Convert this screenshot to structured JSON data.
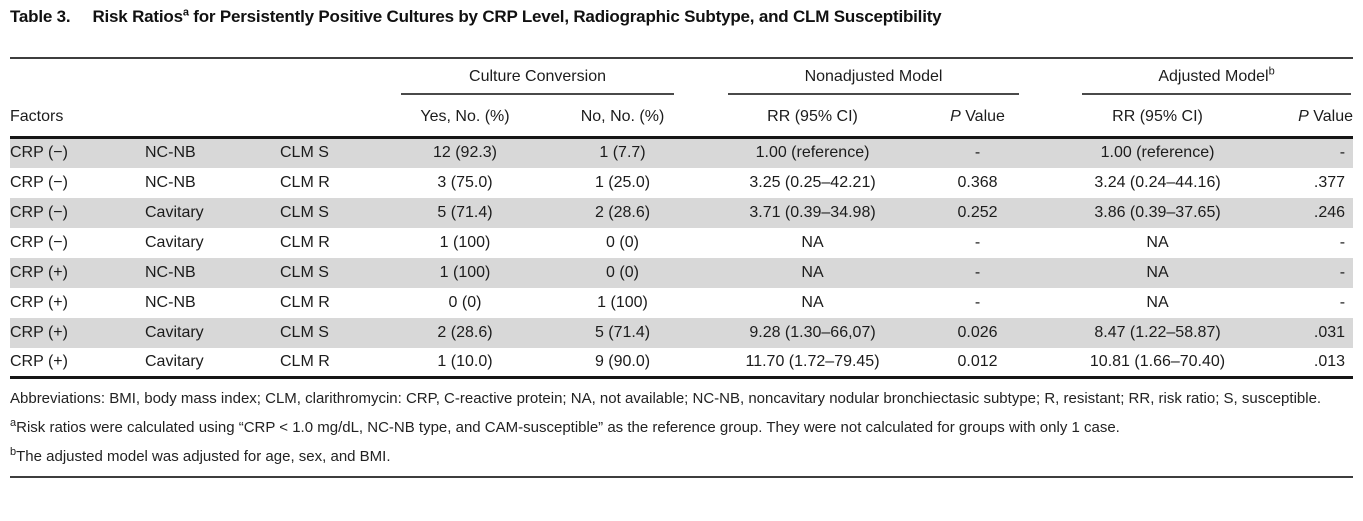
{
  "title": {
    "label": "Table 3.",
    "before_sup": "Risk Ratios",
    "sup": "a",
    "after_sup": " for Persistently Positive Cultures by CRP Level, Radiographic Subtype, and CLM Susceptibility"
  },
  "table": {
    "groups": {
      "culture_conversion": "Culture Conversion",
      "nonadjusted": "Nonadjusted Model",
      "adjusted": "Adjusted Model",
      "adjusted_sup": "b"
    },
    "headers": {
      "factors": "Factors",
      "yes": "Yes, No. (%)",
      "no": "No, No. (%)",
      "rr_nonadjusted": "RR (95% CI)",
      "rr_adjusted": "RR (95% CI)",
      "p_italic": "P",
      "p_rest": " Value"
    },
    "rows": [
      [
        "CRP (−)",
        "NC-NB",
        "CLM S",
        "12 (92.3)",
        "1 (7.7)",
        "1.00 (reference)",
        "-",
        "1.00 (reference)",
        "-"
      ],
      [
        "CRP (−)",
        "NC-NB",
        "CLM R",
        "3 (75.0)",
        "1 (25.0)",
        "3.25 (0.25–42.21)",
        "0.368",
        "3.24 (0.24–44.16)",
        ".377"
      ],
      [
        "CRP (−)",
        "Cavitary",
        "CLM S",
        "5 (71.4)",
        "2 (28.6)",
        "3.71 (0.39–34.98)",
        "0.252",
        "3.86 (0.39–37.65)",
        ".246"
      ],
      [
        "CRP (−)",
        "Cavitary",
        "CLM R",
        "1 (100)",
        "0 (0)",
        "NA",
        "-",
        "NA",
        "-"
      ],
      [
        "CRP (+)",
        "NC-NB",
        "CLM S",
        "1 (100)",
        "0 (0)",
        "NA",
        "-",
        "NA",
        "-"
      ],
      [
        "CRP (+)",
        "NC-NB",
        "CLM R",
        "0 (0)",
        "1 (100)",
        "NA",
        "-",
        "NA",
        "-"
      ],
      [
        "CRP (+)",
        "Cavitary",
        "CLM S",
        "2 (28.6)",
        "5 (71.4)",
        "9.28 (1.30–66,07)",
        "0.026",
        "8.47 (1.22–58.87)",
        ".031"
      ],
      [
        "CRP (+)",
        "Cavitary",
        "CLM R",
        "1 (10.0)",
        "9 (90.0)",
        "11.70 (1.72–79.45)",
        "0.012",
        "10.81 (1.66–70.40)",
        ".013"
      ]
    ]
  },
  "footnotes": {
    "abbreviations": "Abbreviations: BMI, body mass index; CLM, clarithromycin: CRP, C-reactive protein; NA, not available; NC-NB, noncavitary nodular bronchiectasic subtype; R, resistant; RR, risk ratio; S, susceptible.",
    "a_sup": "a",
    "a_text": "Risk ratios were calculated using “CRP < 1.0 mg/dL, NC-NB type, and CAM-susceptible” as the reference group. They were not calculated for groups with only 1 case.",
    "b_sup": "b",
    "b_text": "The adjusted model was adjusted for age, sex, and BMI."
  }
}
